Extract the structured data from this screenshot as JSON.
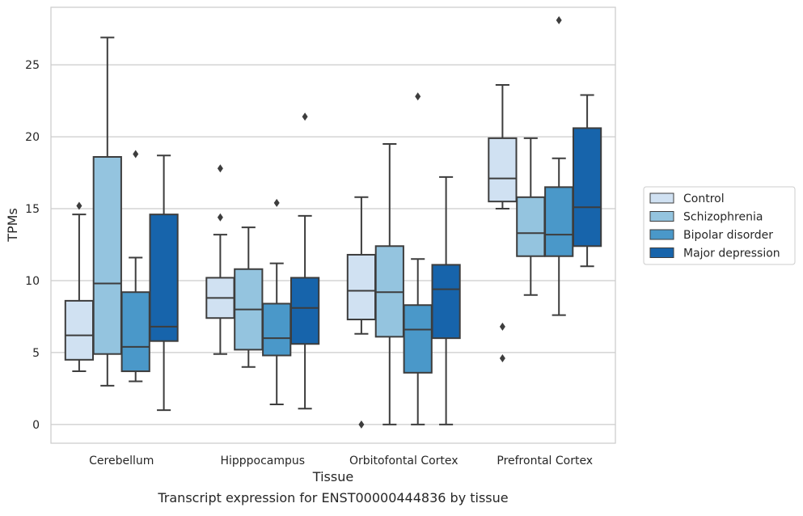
{
  "chart_data": {
    "type": "boxplot",
    "title": "",
    "caption": "Transcript expression for ENST00000444836 by tissue",
    "xlabel": "Tissue",
    "ylabel": "TPMs",
    "ylim": [
      -1.3,
      29.0
    ],
    "yticks": [
      0,
      5,
      10,
      15,
      20,
      25
    ],
    "grid": "horizontal",
    "legend_position": "right",
    "categories": [
      "Cerebellum",
      "Hipppocampus",
      "Orbitofontal Cortex",
      "Prefrontal Cortex"
    ],
    "series": [
      {
        "name": "Control",
        "color": "#d0e1f2",
        "boxes": [
          {
            "whislo": 3.7,
            "q1": 4.5,
            "med": 6.2,
            "q3": 8.6,
            "whishi": 14.6,
            "fliers": [
              15.2
            ]
          },
          {
            "whislo": 4.9,
            "q1": 7.4,
            "med": 8.8,
            "q3": 10.2,
            "whishi": 13.2,
            "fliers": [
              14.4,
              17.8
            ]
          },
          {
            "whislo": 6.3,
            "q1": 7.3,
            "med": 9.3,
            "q3": 11.8,
            "whishi": 15.8,
            "fliers": [
              0.0
            ]
          },
          {
            "whislo": 15.0,
            "q1": 15.5,
            "med": 17.1,
            "q3": 19.9,
            "whishi": 23.6,
            "fliers": [
              6.8,
              4.6
            ]
          }
        ]
      },
      {
        "name": "Schizophrenia",
        "color": "#94c4df",
        "boxes": [
          {
            "whislo": 2.7,
            "q1": 4.9,
            "med": 9.8,
            "q3": 18.6,
            "whishi": 26.9,
            "fliers": []
          },
          {
            "whislo": 4.0,
            "q1": 5.2,
            "med": 8.0,
            "q3": 10.8,
            "whishi": 13.7,
            "fliers": []
          },
          {
            "whislo": 0.0,
            "q1": 6.1,
            "med": 9.2,
            "q3": 12.4,
            "whishi": 19.5,
            "fliers": []
          },
          {
            "whislo": 9.0,
            "q1": 11.7,
            "med": 13.3,
            "q3": 15.8,
            "whishi": 19.9,
            "fliers": []
          }
        ]
      },
      {
        "name": "Bipolar disorder",
        "color": "#4a98c9",
        "boxes": [
          {
            "whislo": 3.0,
            "q1": 3.7,
            "med": 5.4,
            "q3": 9.2,
            "whishi": 11.6,
            "fliers": [
              18.8
            ]
          },
          {
            "whislo": 1.4,
            "q1": 4.8,
            "med": 6.0,
            "q3": 8.4,
            "whishi": 11.2,
            "fliers": [
              15.4
            ]
          },
          {
            "whislo": 0.0,
            "q1": 3.6,
            "med": 6.6,
            "q3": 8.3,
            "whishi": 11.5,
            "fliers": [
              22.8
            ]
          },
          {
            "whislo": 7.6,
            "q1": 11.7,
            "med": 13.2,
            "q3": 16.5,
            "whishi": 18.5,
            "fliers": [
              28.1
            ]
          }
        ]
      },
      {
        "name": "Major depression",
        "color": "#1764ab",
        "boxes": [
          {
            "whislo": 1.0,
            "q1": 5.8,
            "med": 6.8,
            "q3": 14.6,
            "whishi": 18.7,
            "fliers": []
          },
          {
            "whislo": 1.1,
            "q1": 5.6,
            "med": 8.1,
            "q3": 10.2,
            "whishi": 14.5,
            "fliers": [
              21.4
            ]
          },
          {
            "whislo": 0.0,
            "q1": 6.0,
            "med": 9.4,
            "q3": 11.1,
            "whishi": 17.2,
            "fliers": []
          },
          {
            "whislo": 11.0,
            "q1": 12.4,
            "med": 15.1,
            "q3": 20.6,
            "whishi": 22.9,
            "fliers": []
          }
        ]
      }
    ]
  }
}
